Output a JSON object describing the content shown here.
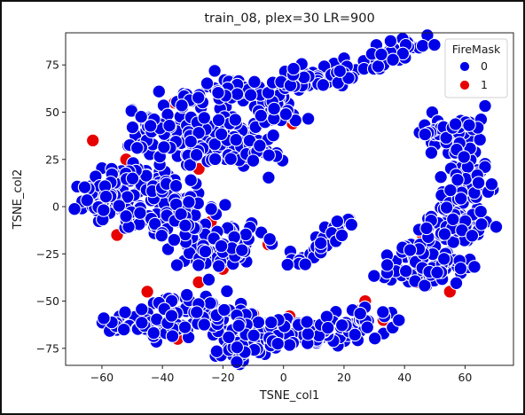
{
  "chart_data": {
    "type": "scatter",
    "title": "train_08, plex=30 LR=900",
    "xlabel": "TSNE_col1",
    "ylabel": "TSNE_col2",
    "xlim": [
      -72,
      76
    ],
    "ylim": [
      -84,
      92
    ],
    "xticks": [
      -60,
      -40,
      -20,
      0,
      20,
      40,
      60
    ],
    "yticks": [
      -75,
      -50,
      -25,
      0,
      25,
      50,
      75
    ],
    "xtick_labels": [
      "−60",
      "−40",
      "−20",
      "0",
      "20",
      "40",
      "60"
    ],
    "ytick_labels": [
      "−75",
      "−50",
      "−25",
      "0",
      "25",
      "50",
      "75"
    ],
    "grid": false,
    "legend": {
      "title": "FireMask",
      "placement": "top-right",
      "entries": [
        {
          "label": "0",
          "color": "#0000e8"
        },
        {
          "label": "1",
          "color": "#e60000"
        }
      ]
    },
    "series": [
      {
        "name": "0",
        "color": "#0000e8",
        "clusters": [
          {
            "points": [
              [
                -58,
                10
              ],
              [
                -48,
                18
              ],
              [
                -40,
                8
              ],
              [
                -30,
                -5
              ],
              [
                -25,
                -28
              ],
              [
                -18,
                -20
              ],
              [
                -12,
                -15
              ],
              [
                -38,
                -10
              ],
              [
                -50,
                -2
              ],
              [
                -62,
                2
              ]
            ],
            "spread": 4.5,
            "count": 300
          },
          {
            "points": [
              [
                -45,
                40
              ],
              [
                -30,
                58
              ],
              [
                -15,
                64
              ],
              [
                0,
                58
              ],
              [
                -5,
                42
              ],
              [
                -25,
                42
              ],
              [
                -35,
                30
              ],
              [
                -20,
                30
              ],
              [
                -8,
                30
              ]
            ],
            "spread": 4.5,
            "count": 250
          },
          {
            "points": [
              [
                4,
                67
              ],
              [
                15,
                69
              ],
              [
                28,
                75
              ],
              [
                42,
                84
              ]
            ],
            "spread": 3.5,
            "count": 80
          },
          {
            "points": [
              [
                60,
                42
              ],
              [
                50,
                42
              ],
              [
                55,
                30
              ],
              [
                62,
                22
              ],
              [
                66,
                12
              ],
              [
                57,
                10
              ],
              [
                58,
                -5
              ],
              [
                64,
                -10
              ],
              [
                52,
                -20
              ],
              [
                42,
                -25
              ],
              [
                58,
                -30
              ],
              [
                50,
                -36
              ],
              [
                38,
                -38
              ],
              [
                60,
                12
              ],
              [
                55,
                -12
              ]
            ],
            "spread": 4.0,
            "count": 280
          },
          {
            "points": [
              [
                -52,
                -60
              ],
              [
                -42,
                -64
              ],
              [
                -30,
                -62
              ],
              [
                -22,
                -52
              ],
              [
                -10,
                -62
              ],
              [
                0,
                -66
              ],
              [
                10,
                -66
              ],
              [
                20,
                -64
              ],
              [
                30,
                -62
              ],
              [
                -20,
                -77
              ],
              [
                -12,
                -73
              ],
              [
                -2,
                -70
              ],
              [
                -38,
                -52
              ]
            ],
            "spread": 3.8,
            "count": 280
          },
          {
            "points": [
              [
                5,
                -30
              ],
              [
                12,
                -20
              ],
              [
                20,
                -8
              ]
            ],
            "spread": 2.0,
            "count": 35
          }
        ]
      },
      {
        "name": "1",
        "color": "#e60000",
        "points": [
          [
            -63,
            35
          ],
          [
            -42,
            -5
          ],
          [
            -28,
            20
          ],
          [
            -16,
            25
          ],
          [
            -8,
            62
          ],
          [
            3,
            44
          ],
          [
            -55,
            -15
          ],
          [
            -28,
            -40
          ],
          [
            -20,
            -33
          ],
          [
            -10,
            -57
          ],
          [
            2,
            -58
          ],
          [
            24,
            -55
          ],
          [
            27,
            -50
          ],
          [
            44,
            -40
          ],
          [
            50,
            -33
          ],
          [
            60,
            -7
          ],
          [
            -45,
            -45
          ],
          [
            -35,
            -70
          ],
          [
            -14,
            42
          ],
          [
            -36,
            55
          ],
          [
            15,
            -62
          ],
          [
            33,
            -60
          ],
          [
            55,
            -45
          ],
          [
            -52,
            25
          ],
          [
            -40,
            14
          ],
          [
            -24,
            -8
          ],
          [
            6,
            -66
          ],
          [
            62,
            22
          ],
          [
            46,
            -15
          ],
          [
            -5,
            -20
          ]
        ]
      }
    ]
  }
}
